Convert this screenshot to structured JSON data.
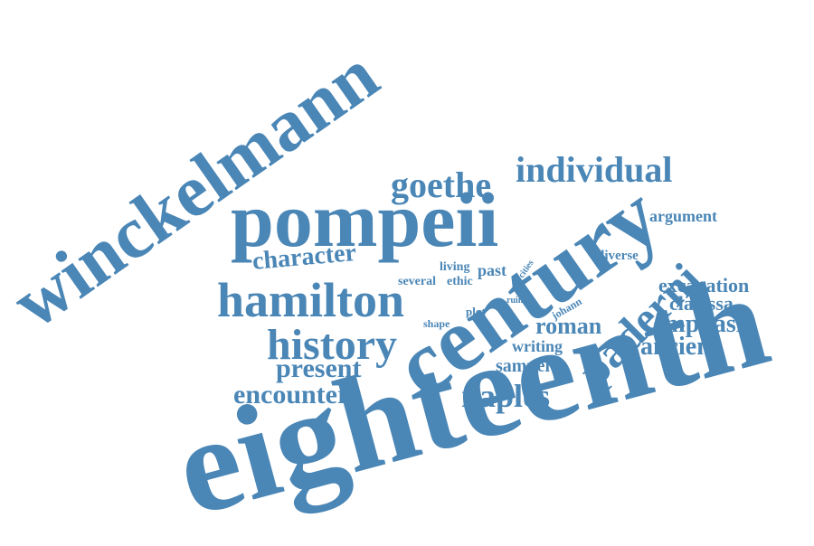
{
  "palette": {
    "word_color": "#4a86b6",
    "background": "#ffffff"
  },
  "word_cloud": {
    "words": [
      {
        "text": "eighteenth",
        "orientation": "horizontal"
      },
      {
        "text": "winckelmann",
        "orientation": "rotated"
      },
      {
        "text": "century",
        "orientation": "rotated"
      },
      {
        "text": "pompeii",
        "orientation": "horizontal"
      },
      {
        "text": "hamilton",
        "orientation": "horizontal"
      },
      {
        "text": "paderni",
        "orientation": "rotated"
      },
      {
        "text": "history",
        "orientation": "horizontal"
      },
      {
        "text": "individual",
        "orientation": "horizontal"
      },
      {
        "text": "goethe",
        "orientation": "horizontal"
      },
      {
        "text": "naples",
        "orientation": "horizontal"
      },
      {
        "text": "encounter",
        "orientation": "horizontal"
      },
      {
        "text": "present",
        "orientation": "horizontal"
      },
      {
        "text": "character",
        "orientation": "rotated"
      },
      {
        "text": "emphasis",
        "orientation": "horizontal"
      },
      {
        "text": "ancient",
        "orientation": "horizontal"
      },
      {
        "text": "roman",
        "orientation": "horizontal"
      },
      {
        "text": "excavation",
        "orientation": "horizontal"
      },
      {
        "text": "clarissa",
        "orientation": "horizontal"
      },
      {
        "text": "argument",
        "orientation": "horizontal"
      },
      {
        "text": "samuel",
        "orientation": "horizontal"
      },
      {
        "text": "writing",
        "orientation": "horizontal"
      },
      {
        "text": "diverse",
        "orientation": "horizontal"
      },
      {
        "text": "past",
        "orientation": "horizontal"
      },
      {
        "text": "living",
        "orientation": "horizontal"
      },
      {
        "text": "several",
        "orientation": "horizontal"
      },
      {
        "text": "ethic",
        "orientation": "horizontal"
      },
      {
        "text": "plot",
        "orientation": "horizontal"
      },
      {
        "text": "shape",
        "orientation": "horizontal"
      },
      {
        "text": "johann",
        "orientation": "rotated"
      },
      {
        "text": "cities",
        "orientation": "rotated"
      },
      {
        "text": "ruin",
        "orientation": "rotated"
      }
    ]
  }
}
